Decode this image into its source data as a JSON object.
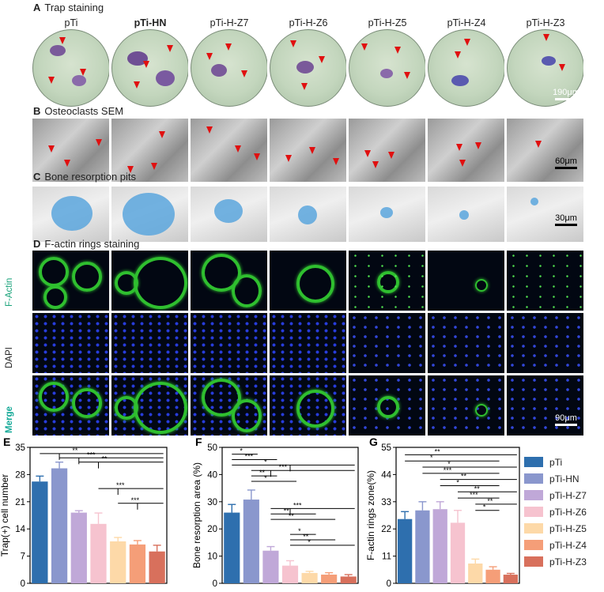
{
  "panels": {
    "A": {
      "letter": "A",
      "title": "Trap staining",
      "scale": "190μm"
    },
    "B": {
      "letter": "B",
      "title": "Osteoclasts SEM",
      "scale": "60μm"
    },
    "C": {
      "letter": "C",
      "title": "Bone resorption pits",
      "scale": "30μm"
    },
    "D": {
      "letter": "D",
      "title": "F-actin rings staining",
      "scale": "90μm",
      "rows": [
        "F-Actin",
        "DAPI",
        "Merge"
      ],
      "row_colors": [
        "#1aa37a",
        "#1a3cff",
        "#12a896"
      ]
    }
  },
  "groups": [
    "pTi",
    "pTi-HN",
    "pTi-H-Z7",
    "pTi-H-Z6",
    "pTi-H-Z5",
    "pTi-H-Z4",
    "pTi-H-Z3"
  ],
  "group_colors": [
    "#2e6fae",
    "#8a97cd",
    "#c0a8d8",
    "#f6c3cf",
    "#fdd9a8",
    "#f59e78",
    "#d8705c"
  ],
  "chart_data": [
    {
      "type": "bar",
      "letter": "E",
      "title": "",
      "xlabel": "",
      "ylabel": "Trap(+) cell number",
      "categories": [
        "pTi",
        "pTi-HN",
        "pTi-H-Z7",
        "pTi-H-Z6",
        "pTi-H-Z5",
        "pTi-H-Z4",
        "pTi-H-Z3"
      ],
      "values": [
        26.2,
        29.6,
        18.2,
        15.3,
        10.8,
        10.0,
        8.2
      ],
      "errors": [
        1.4,
        1.6,
        0.5,
        2.8,
        1.0,
        1.0,
        1.6
      ],
      "ylim": [
        0,
        35
      ],
      "ticks": [
        0,
        7,
        14,
        21,
        28,
        35
      ],
      "significance": [
        {
          "from": 0,
          "to": [
            1,
            2,
            3,
            4,
            5,
            6
          ],
          "label": "**",
          "level": 33.4
        },
        {
          "from": 1,
          "to": [
            2,
            3,
            4,
            5,
            6
          ],
          "label": "***",
          "level": 32.3
        },
        {
          "from": 2,
          "to": [
            3,
            4,
            5,
            6
          ],
          "label": "**",
          "level": 31.2
        },
        {
          "from": 3,
          "to": [
            4,
            5,
            6
          ],
          "label": "***",
          "level": 24.4
        },
        {
          "from": 4,
          "to": [
            5,
            6
          ],
          "label": "***",
          "level": 20.6
        }
      ]
    },
    {
      "type": "bar",
      "letter": "F",
      "title": "",
      "xlabel": "",
      "ylabel": "Bone resorption area (%)",
      "categories": [
        "pTi",
        "pTi-HN",
        "pTi-H-Z7",
        "pTi-H-Z6",
        "pTi-H-Z5",
        "pTi-H-Z4",
        "pTi-H-Z3"
      ],
      "values": [
        26.0,
        30.8,
        12.0,
        6.5,
        3.8,
        3.2,
        2.5
      ],
      "errors": [
        3.0,
        3.5,
        1.5,
        1.8,
        0.6,
        0.7,
        0.7
      ],
      "ylim": [
        0,
        50
      ],
      "ticks": [
        0,
        10,
        20,
        30,
        40,
        50
      ],
      "significance": [
        {
          "from": 0,
          "to": [
            1
          ],
          "label": "*",
          "level": 47.5
        },
        {
          "from": 0,
          "to": [
            2
          ],
          "label": "***",
          "level": 45.5
        },
        {
          "from": 0,
          "to": [
            3,
            4,
            5,
            6
          ],
          "label": "*",
          "level": 43.5
        },
        {
          "from": 1,
          "to": [
            2,
            3,
            4,
            5,
            6
          ],
          "label": "***",
          "level": 41.5
        },
        {
          "from": 1,
          "to": [
            2
          ],
          "label": "**",
          "level": 39.5
        },
        {
          "from": 1,
          "to": [
            3
          ],
          "label": "*",
          "level": 37.5
        },
        {
          "from": 2,
          "to": [
            3,
            4,
            5,
            6
          ],
          "label": "***",
          "level": 27.5
        },
        {
          "from": 2,
          "to": [
            4
          ],
          "label": "**",
          "level": 25.5
        },
        {
          "from": 2,
          "to": [
            5
          ],
          "label": "**",
          "level": 23.5
        },
        {
          "from": 3,
          "to": [
            4
          ],
          "label": "*",
          "level": 18.0
        },
        {
          "from": 3,
          "to": [
            5
          ],
          "label": "**",
          "level": 16.0
        },
        {
          "from": 3,
          "to": [
            6
          ],
          "label": "*",
          "level": 14.0
        }
      ]
    },
    {
      "type": "bar",
      "letter": "G",
      "title": "",
      "xlabel": "",
      "ylabel": "F-actin rings zone(%)",
      "categories": [
        "pTi",
        "pTi-HN",
        "pTi-H-Z7",
        "pTi-H-Z6",
        "pTi-H-Z5",
        "pTi-H-Z4",
        "pTi-H-Z3"
      ],
      "values": [
        26.0,
        29.5,
        30.0,
        24.5,
        8.0,
        5.5,
        3.5
      ],
      "errors": [
        3.0,
        3.5,
        3.0,
        5.0,
        1.8,
        1.2,
        0.5
      ],
      "ylim": [
        0,
        55
      ],
      "ticks": [
        0,
        11,
        22,
        33,
        44,
        55
      ],
      "significance": [
        {
          "from": 0,
          "to": [
            6
          ],
          "label": "**",
          "level": 52.0
        },
        {
          "from": 0,
          "to": [
            5
          ],
          "label": "*",
          "level": 49.5
        },
        {
          "from": 1,
          "to": [
            6
          ],
          "label": "*",
          "level": 47.0
        },
        {
          "from": 1,
          "to": [
            5
          ],
          "label": "***",
          "level": 44.5
        },
        {
          "from": 2,
          "to": [
            6
          ],
          "label": "**",
          "level": 42.0
        },
        {
          "from": 2,
          "to": [
            5
          ],
          "label": "*",
          "level": 39.5
        },
        {
          "from": 3,
          "to": [
            6
          ],
          "label": "**",
          "level": 37.0
        },
        {
          "from": 3,
          "to": [
            5
          ],
          "label": "***",
          "level": 34.5
        },
        {
          "from": 4,
          "to": [
            6
          ],
          "label": "**",
          "level": 32.0
        },
        {
          "from": 4,
          "to": [
            5
          ],
          "label": "*",
          "level": 29.5
        }
      ]
    }
  ]
}
